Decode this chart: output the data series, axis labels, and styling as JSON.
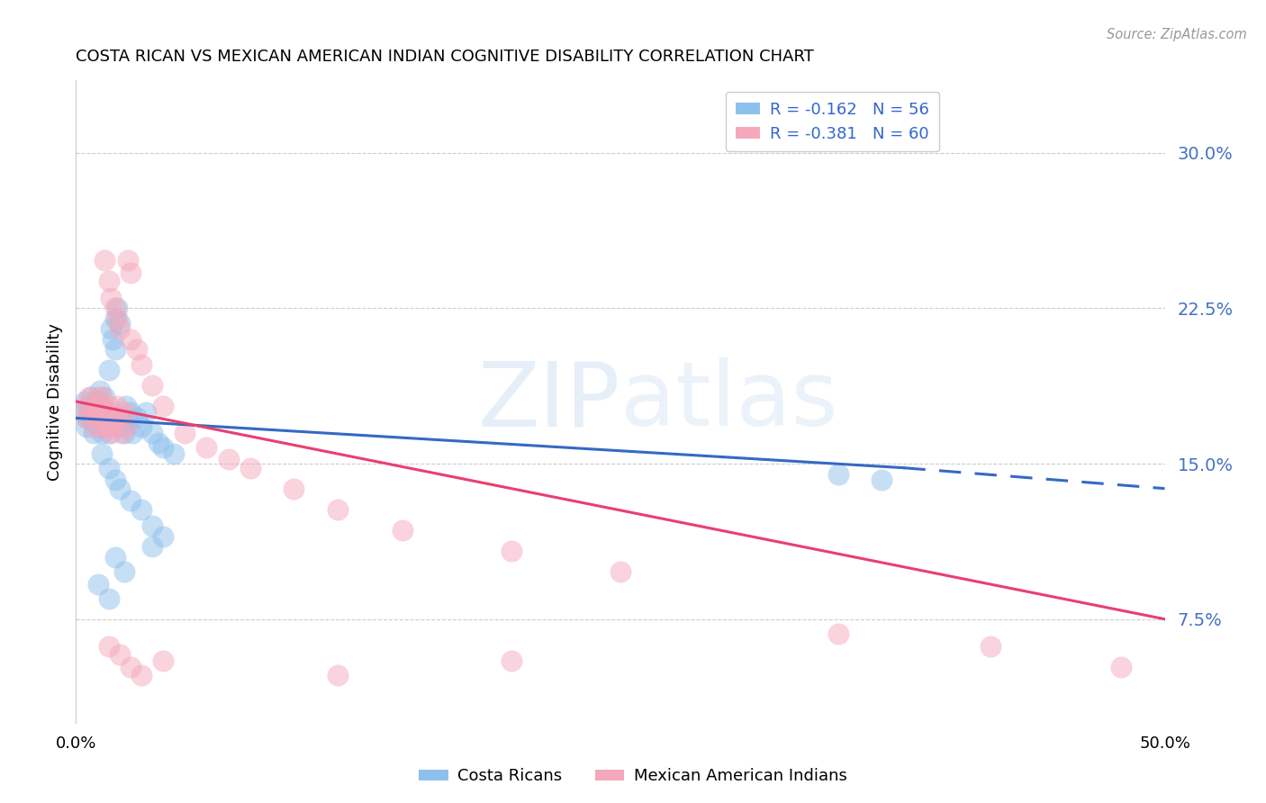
{
  "title": "COSTA RICAN VS MEXICAN AMERICAN INDIAN COGNITIVE DISABILITY CORRELATION CHART",
  "source": "Source: ZipAtlas.com",
  "ylabel": "Cognitive Disability",
  "ytick_labels": [
    "7.5%",
    "15.0%",
    "22.5%",
    "30.0%"
  ],
  "ytick_values": [
    0.075,
    0.15,
    0.225,
    0.3
  ],
  "xlim": [
    0.0,
    0.5
  ],
  "ylim": [
    0.025,
    0.335
  ],
  "legend_blue_r": "R = -0.162",
  "legend_blue_n": "N = 56",
  "legend_pink_r": "R = -0.381",
  "legend_pink_n": "N = 60",
  "blue_color": "#8EC0ED",
  "pink_color": "#F5A8BC",
  "blue_line_color": "#3569C4",
  "pink_line_color": "#E84070",
  "blue_line_solid": [
    [
      0.0,
      0.172
    ],
    [
      0.38,
      0.148
    ]
  ],
  "blue_line_dash": [
    [
      0.38,
      0.148
    ],
    [
      0.5,
      0.138
    ]
  ],
  "pink_line_solid": [
    [
      0.0,
      0.18
    ],
    [
      0.5,
      0.075
    ]
  ],
  "blue_scatter": [
    [
      0.003,
      0.175
    ],
    [
      0.004,
      0.18
    ],
    [
      0.005,
      0.168
    ],
    [
      0.006,
      0.178
    ],
    [
      0.007,
      0.172
    ],
    [
      0.007,
      0.182
    ],
    [
      0.008,
      0.17
    ],
    [
      0.008,
      0.165
    ],
    [
      0.009,
      0.175
    ],
    [
      0.01,
      0.18
    ],
    [
      0.01,
      0.168
    ],
    [
      0.011,
      0.185
    ],
    [
      0.011,
      0.172
    ],
    [
      0.012,
      0.178
    ],
    [
      0.012,
      0.165
    ],
    [
      0.013,
      0.175
    ],
    [
      0.013,
      0.182
    ],
    [
      0.014,
      0.17
    ],
    [
      0.015,
      0.195
    ],
    [
      0.015,
      0.165
    ],
    [
      0.016,
      0.215
    ],
    [
      0.017,
      0.21
    ],
    [
      0.018,
      0.205
    ],
    [
      0.018,
      0.22
    ],
    [
      0.019,
      0.225
    ],
    [
      0.02,
      0.218
    ],
    [
      0.02,
      0.168
    ],
    [
      0.021,
      0.172
    ],
    [
      0.022,
      0.165
    ],
    [
      0.023,
      0.178
    ],
    [
      0.024,
      0.17
    ],
    [
      0.025,
      0.175
    ],
    [
      0.026,
      0.165
    ],
    [
      0.028,
      0.172
    ],
    [
      0.03,
      0.168
    ],
    [
      0.032,
      0.175
    ],
    [
      0.035,
      0.165
    ],
    [
      0.038,
      0.16
    ],
    [
      0.04,
      0.158
    ],
    [
      0.045,
      0.155
    ],
    [
      0.012,
      0.155
    ],
    [
      0.015,
      0.148
    ],
    [
      0.018,
      0.142
    ],
    [
      0.02,
      0.138
    ],
    [
      0.025,
      0.132
    ],
    [
      0.03,
      0.128
    ],
    [
      0.035,
      0.12
    ],
    [
      0.04,
      0.115
    ],
    [
      0.018,
      0.105
    ],
    [
      0.022,
      0.098
    ],
    [
      0.035,
      0.11
    ],
    [
      0.01,
      0.092
    ],
    [
      0.015,
      0.085
    ],
    [
      0.35,
      0.145
    ],
    [
      0.37,
      0.142
    ],
    [
      0.005,
      0.172
    ]
  ],
  "pink_scatter": [
    [
      0.004,
      0.178
    ],
    [
      0.005,
      0.172
    ],
    [
      0.006,
      0.182
    ],
    [
      0.007,
      0.175
    ],
    [
      0.008,
      0.178
    ],
    [
      0.008,
      0.168
    ],
    [
      0.009,
      0.175
    ],
    [
      0.01,
      0.182
    ],
    [
      0.01,
      0.172
    ],
    [
      0.011,
      0.178
    ],
    [
      0.011,
      0.168
    ],
    [
      0.012,
      0.175
    ],
    [
      0.012,
      0.182
    ],
    [
      0.013,
      0.172
    ],
    [
      0.013,
      0.168
    ],
    [
      0.014,
      0.175
    ],
    [
      0.015,
      0.178
    ],
    [
      0.015,
      0.168
    ],
    [
      0.016,
      0.172
    ],
    [
      0.016,
      0.165
    ],
    [
      0.017,
      0.175
    ],
    [
      0.017,
      0.168
    ],
    [
      0.018,
      0.172
    ],
    [
      0.019,
      0.178
    ],
    [
      0.02,
      0.172
    ],
    [
      0.021,
      0.165
    ],
    [
      0.022,
      0.175
    ],
    [
      0.023,
      0.168
    ],
    [
      0.024,
      0.248
    ],
    [
      0.025,
      0.242
    ],
    [
      0.013,
      0.248
    ],
    [
      0.015,
      0.238
    ],
    [
      0.016,
      0.23
    ],
    [
      0.018,
      0.225
    ],
    [
      0.019,
      0.22
    ],
    [
      0.02,
      0.215
    ],
    [
      0.025,
      0.21
    ],
    [
      0.028,
      0.205
    ],
    [
      0.03,
      0.198
    ],
    [
      0.035,
      0.188
    ],
    [
      0.04,
      0.178
    ],
    [
      0.05,
      0.165
    ],
    [
      0.06,
      0.158
    ],
    [
      0.07,
      0.152
    ],
    [
      0.08,
      0.148
    ],
    [
      0.1,
      0.138
    ],
    [
      0.12,
      0.128
    ],
    [
      0.15,
      0.118
    ],
    [
      0.2,
      0.108
    ],
    [
      0.25,
      0.098
    ],
    [
      0.015,
      0.062
    ],
    [
      0.02,
      0.058
    ],
    [
      0.025,
      0.052
    ],
    [
      0.03,
      0.048
    ],
    [
      0.04,
      0.055
    ],
    [
      0.12,
      0.048
    ],
    [
      0.2,
      0.055
    ],
    [
      0.35,
      0.068
    ],
    [
      0.42,
      0.062
    ],
    [
      0.48,
      0.052
    ]
  ]
}
